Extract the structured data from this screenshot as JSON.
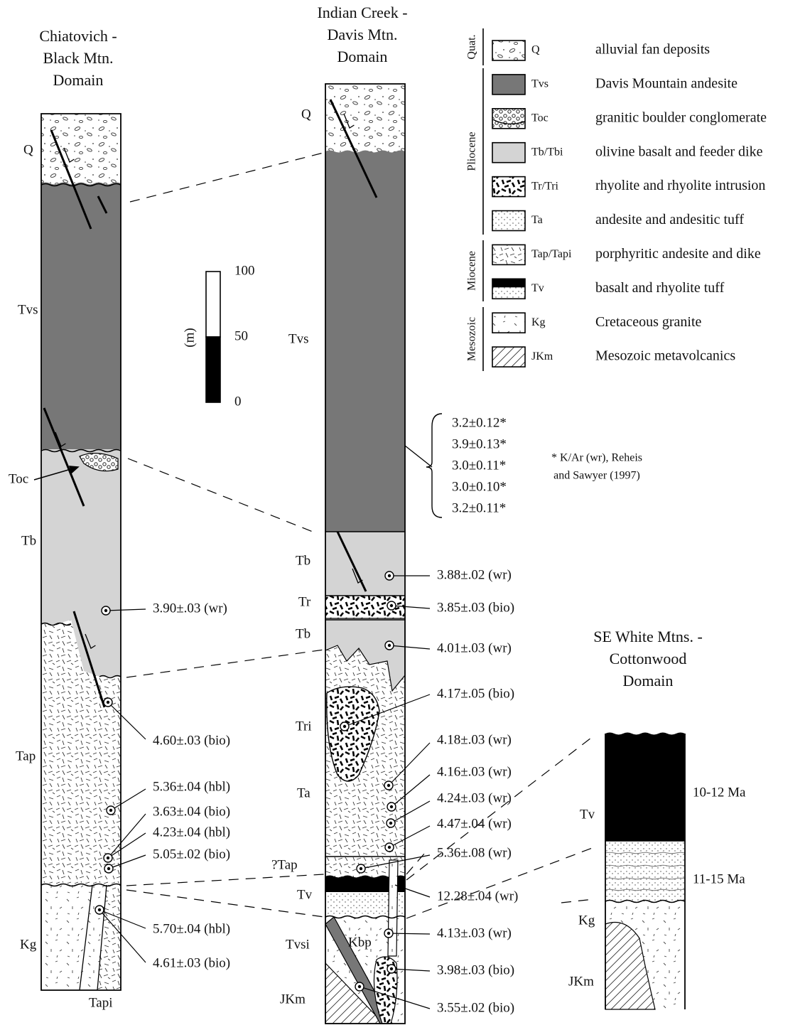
{
  "columns": [
    {
      "title": [
        "Chiatovich -",
        "Black Mtn.",
        "Domain"
      ],
      "units": [
        "Q",
        "Tvs",
        "Toc",
        "Tb",
        "Tap",
        "Kg",
        "Tapi"
      ],
      "ages": [
        "3.90±.03 (wr)",
        "4.60±.03 (bio)",
        "5.36±.04 (hbl)",
        "3.63±.04 (bio)",
        "4.23±.04 (hbl)",
        "5.05±.02 (bio)",
        "5.70±.04 (hbl)",
        "4.61±.03 (bio)"
      ]
    },
    {
      "title": [
        "Indian Creek -",
        "Davis Mtn.",
        "Domain"
      ],
      "units": [
        "Q",
        "Tvs",
        "Tb",
        "Tr",
        "Tb",
        "Tri",
        "Ta",
        "?Tap",
        "Tv",
        "Tvsi",
        "Kbp",
        "JKm"
      ],
      "ages": [
        "3.88±.02 (wr)",
        "3.85±.03 (bio)",
        "4.01±.03 (wr)",
        "4.17±.05 (bio)",
        "4.18±.03 (wr)",
        "4.16±.03 (wr)",
        "4.24±.03 (wr)",
        "4.47±.04 (wr)",
        "5.36±.08 (wr)",
        "12.28±.04 (wr)",
        "4.13±.03 (wr)",
        "3.98±.03 (bio)",
        "3.55±.02 (bio)"
      ],
      "kar_ages": [
        "3.2±0.12*",
        "3.9±0.13*",
        "3.0±0.11*",
        "3.0±0.10*",
        "3.2±0.11*"
      ]
    },
    {
      "title": [
        "SE White Mtns. -",
        "Cottonwood",
        "Domain"
      ],
      "units": [
        "Tv",
        "Kg",
        "JKm"
      ],
      "ages": [
        "10-12 Ma",
        "11-15 Ma"
      ]
    }
  ],
  "kar_note": [
    "* K/Ar (wr), Reheis",
    "and Sawyer (1997)"
  ],
  "scale": {
    "unit": "(m)",
    "ticks": [
      100,
      50,
      0
    ]
  },
  "legend": {
    "periods": [
      "Quat.",
      "Pliocene",
      "Miocene",
      "Mesozoic"
    ],
    "items": [
      {
        "code": "Q",
        "description": "alluvial fan deposits"
      },
      {
        "code": "Tvs",
        "description": "Davis Mountain andesite"
      },
      {
        "code": "Toc",
        "description": "granitic boulder conglomerate"
      },
      {
        "code": "Tb/Tbi",
        "description": "olivine basalt and feeder dike"
      },
      {
        "code": "Tr/Tri",
        "description": "rhyolite and rhyolite intrusion"
      },
      {
        "code": "Ta",
        "description": "andesite and andesitic tuff"
      },
      {
        "code": "Tap/Tapi",
        "description": "porphyritic andesite and dike"
      },
      {
        "code": "Tv",
        "description": "basalt and rhyolite tuff"
      },
      {
        "code": "Kg",
        "description": "Cretaceous granite"
      },
      {
        "code": "JKm",
        "description": "Mesozoic metavolcanics"
      }
    ]
  }
}
